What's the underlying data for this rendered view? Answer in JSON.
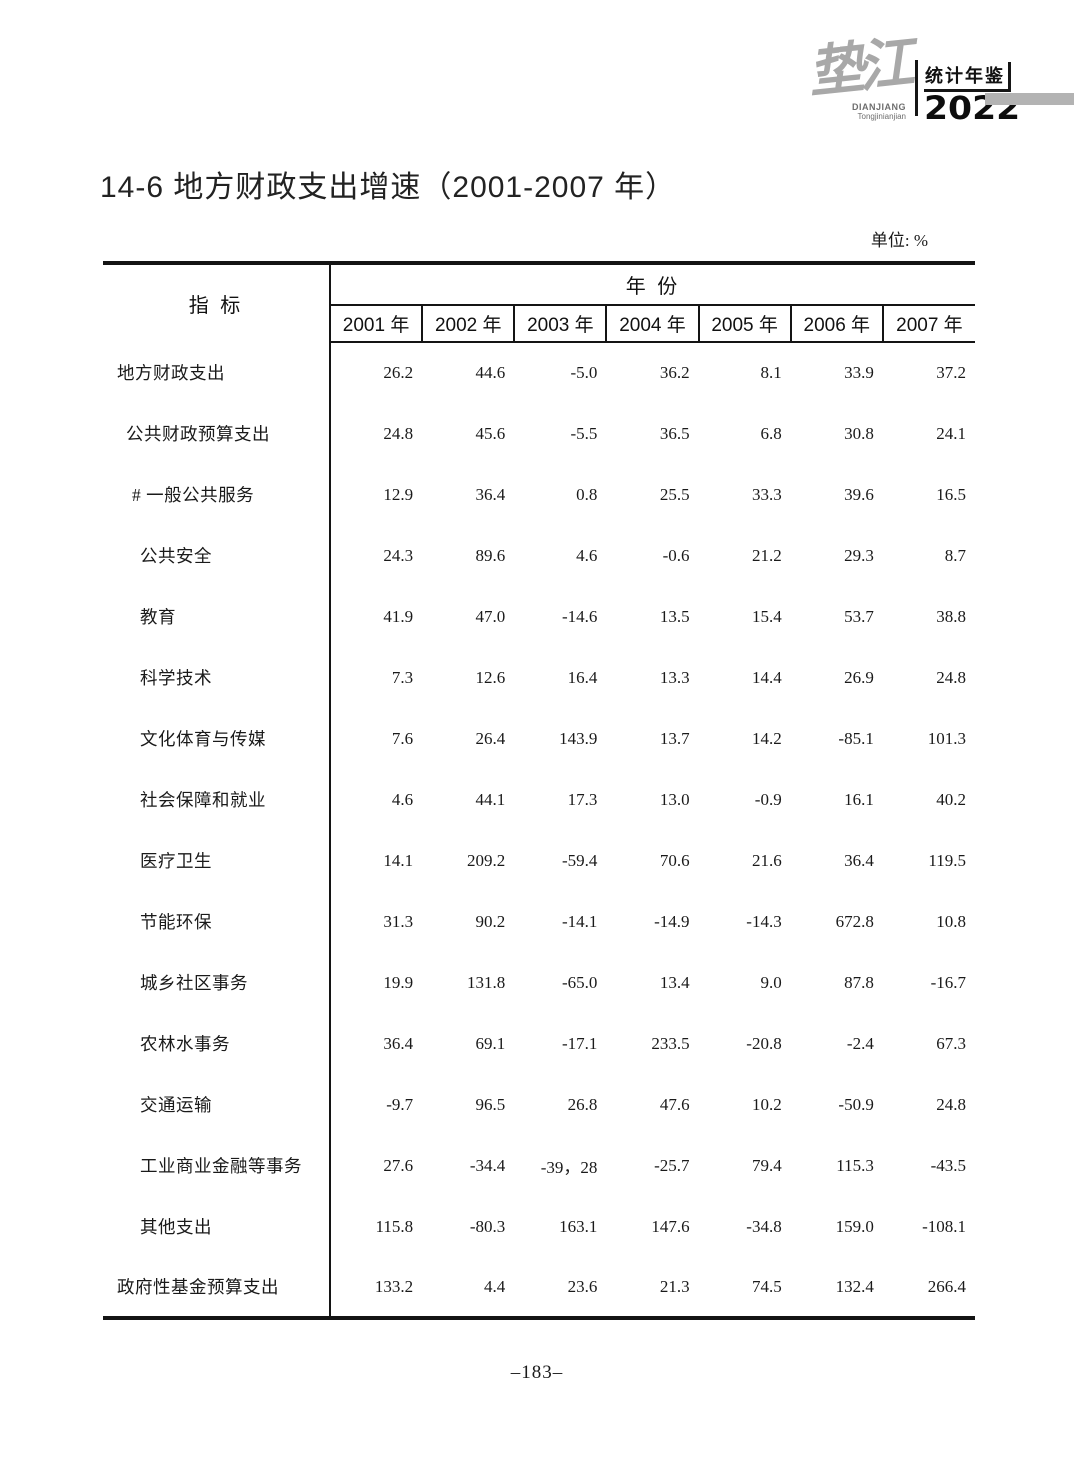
{
  "logo": {
    "calligraphy": "垫江",
    "latin_line1": "DIANJIANG",
    "latin_line2": "Tongjinianjian",
    "yearbook_label": "统计年鉴",
    "year": "2022"
  },
  "page": {
    "title": "14-6 地方财政支出增速（2001-2007 年）",
    "unit_label": "单位: %",
    "page_number": "–183–"
  },
  "colors": {
    "rule": "#141414",
    "text": "#1a1a1a",
    "logo_bar_gray": "#b3b3b3",
    "calligraphy_gray": "#a8a8a8"
  },
  "table": {
    "indicator_header": "指 标",
    "year_group_header": "年 份",
    "columns": [
      "2001 年",
      "2002 年",
      "2003 年",
      "2004 年",
      "2005 年",
      "2006 年",
      "2007 年"
    ],
    "rows": [
      {
        "label": "地方财政支出",
        "indent": 0,
        "values": [
          "26.2",
          "44.6",
          "-5.0",
          "36.2",
          "8.1",
          "33.9",
          "37.2"
        ]
      },
      {
        "label": "公共财政预算支出",
        "indent": 1,
        "values": [
          "24.8",
          "45.6",
          "-5.5",
          "36.5",
          "6.8",
          "30.8",
          "24.1"
        ]
      },
      {
        "label": "# 一般公共服务",
        "indent": 2,
        "values": [
          "12.9",
          "36.4",
          "0.8",
          "25.5",
          "33.3",
          "39.6",
          "16.5"
        ]
      },
      {
        "label": "公共安全",
        "indent": 3,
        "values": [
          "24.3",
          "89.6",
          "4.6",
          "-0.6",
          "21.2",
          "29.3",
          "8.7"
        ]
      },
      {
        "label": "教育",
        "indent": 3,
        "values": [
          "41.9",
          "47.0",
          "-14.6",
          "13.5",
          "15.4",
          "53.7",
          "38.8"
        ]
      },
      {
        "label": "科学技术",
        "indent": 3,
        "values": [
          "7.3",
          "12.6",
          "16.4",
          "13.3",
          "14.4",
          "26.9",
          "24.8"
        ]
      },
      {
        "label": "文化体育与传媒",
        "indent": 3,
        "values": [
          "7.6",
          "26.4",
          "143.9",
          "13.7",
          "14.2",
          "-85.1",
          "101.3"
        ]
      },
      {
        "label": "社会保障和就业",
        "indent": 3,
        "values": [
          "4.6",
          "44.1",
          "17.3",
          "13.0",
          "-0.9",
          "16.1",
          "40.2"
        ]
      },
      {
        "label": "医疗卫生",
        "indent": 3,
        "values": [
          "14.1",
          "209.2",
          "-59.4",
          "70.6",
          "21.6",
          "36.4",
          "119.5"
        ]
      },
      {
        "label": "节能环保",
        "indent": 3,
        "values": [
          "31.3",
          "90.2",
          "-14.1",
          "-14.9",
          "-14.3",
          "672.8",
          "10.8"
        ]
      },
      {
        "label": "城乡社区事务",
        "indent": 3,
        "values": [
          "19.9",
          "131.8",
          "-65.0",
          "13.4",
          "9.0",
          "87.8",
          "-16.7"
        ]
      },
      {
        "label": "农林水事务",
        "indent": 3,
        "values": [
          "36.4",
          "69.1",
          "-17.1",
          "233.5",
          "-20.8",
          "-2.4",
          "67.3"
        ]
      },
      {
        "label": "交通运输",
        "indent": 3,
        "values": [
          "-9.7",
          "96.5",
          "26.8",
          "47.6",
          "10.2",
          "-50.9",
          "24.8"
        ]
      },
      {
        "label": "工业商业金融等事务",
        "indent": 3,
        "values": [
          "27.6",
          "-34.4",
          "-39，28",
          "-25.7",
          "79.4",
          "115.3",
          "-43.5"
        ]
      },
      {
        "label": "其他支出",
        "indent": 3,
        "values": [
          "115.8",
          "-80.3",
          "163.1",
          "147.6",
          "-34.8",
          "159.0",
          "-108.1"
        ]
      },
      {
        "label": "政府性基金预算支出",
        "indent": 0,
        "values": [
          "133.2",
          "4.4",
          "23.6",
          "21.3",
          "74.5",
          "132.4",
          "266.4"
        ]
      }
    ]
  }
}
